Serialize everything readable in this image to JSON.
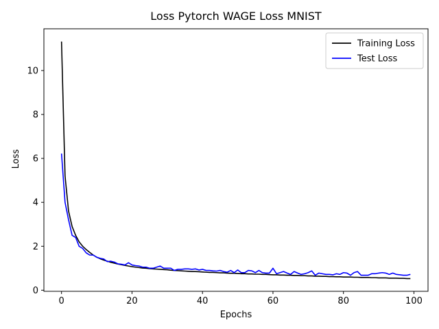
{
  "chart_data": {
    "type": "line",
    "title": "Loss Pytorch WAGE Loss MNIST",
    "xlabel": "Epochs",
    "ylabel": "Loss",
    "xlim": [
      -5,
      104
    ],
    "ylim": [
      -0.05,
      11.9
    ],
    "xticks": [
      0,
      20,
      40,
      60,
      80,
      100
    ],
    "yticks": [
      0,
      2,
      4,
      6,
      8,
      10
    ],
    "grid": false,
    "legend_position": "top-right",
    "x": [
      0,
      1,
      2,
      3,
      4,
      5,
      6,
      7,
      8,
      9,
      10,
      11,
      12,
      13,
      14,
      15,
      16,
      17,
      18,
      19,
      20,
      21,
      22,
      23,
      24,
      25,
      26,
      27,
      28,
      29,
      30,
      31,
      32,
      33,
      34,
      35,
      36,
      37,
      38,
      39,
      40,
      41,
      42,
      43,
      44,
      45,
      46,
      47,
      48,
      49,
      50,
      51,
      52,
      53,
      54,
      55,
      56,
      57,
      58,
      59,
      60,
      61,
      62,
      63,
      64,
      65,
      66,
      67,
      68,
      69,
      70,
      71,
      72,
      73,
      74,
      75,
      76,
      77,
      78,
      79,
      80,
      81,
      82,
      83,
      84,
      85,
      86,
      87,
      88,
      89,
      90,
      91,
      92,
      93,
      94,
      95,
      96,
      97,
      98,
      99
    ],
    "series": [
      {
        "name": "Training Loss",
        "color": "#000000",
        "values": [
          11.32,
          5.2,
          3.6,
          2.9,
          2.5,
          2.2,
          2.0,
          1.85,
          1.72,
          1.6,
          1.5,
          1.43,
          1.37,
          1.32,
          1.27,
          1.23,
          1.19,
          1.16,
          1.13,
          1.1,
          1.07,
          1.05,
          1.03,
          1.01,
          1.0,
          0.98,
          0.97,
          0.96,
          0.95,
          0.94,
          0.93,
          0.91,
          0.9,
          0.89,
          0.88,
          0.87,
          0.86,
          0.85,
          0.85,
          0.84,
          0.83,
          0.82,
          0.81,
          0.81,
          0.8,
          0.79,
          0.79,
          0.78,
          0.77,
          0.77,
          0.76,
          0.75,
          0.75,
          0.74,
          0.74,
          0.73,
          0.73,
          0.72,
          0.72,
          0.71,
          0.7,
          0.7,
          0.69,
          0.69,
          0.68,
          0.68,
          0.67,
          0.67,
          0.66,
          0.66,
          0.65,
          0.65,
          0.64,
          0.64,
          0.63,
          0.63,
          0.62,
          0.62,
          0.61,
          0.61,
          0.6,
          0.6,
          0.6,
          0.59,
          0.59,
          0.58,
          0.58,
          0.58,
          0.57,
          0.57,
          0.56,
          0.56,
          0.56,
          0.55,
          0.55,
          0.55,
          0.54,
          0.54,
          0.53,
          0.53
        ]
      },
      {
        "name": "Test Loss",
        "color": "#0000ff",
        "values": [
          6.22,
          4.0,
          3.2,
          2.5,
          2.4,
          2.0,
          1.9,
          1.7,
          1.6,
          1.6,
          1.5,
          1.45,
          1.42,
          1.3,
          1.32,
          1.28,
          1.2,
          1.18,
          1.15,
          1.25,
          1.15,
          1.12,
          1.1,
          1.05,
          1.05,
          1.0,
          1.0,
          1.05,
          1.1,
          1.0,
          1.0,
          1.0,
          0.9,
          0.95,
          0.95,
          0.97,
          0.97,
          0.95,
          0.97,
          0.92,
          0.95,
          0.9,
          0.9,
          0.88,
          0.87,
          0.9,
          0.85,
          0.82,
          0.9,
          0.8,
          0.92,
          0.8,
          0.8,
          0.9,
          0.88,
          0.8,
          0.9,
          0.8,
          0.78,
          0.78,
          1.0,
          0.75,
          0.8,
          0.85,
          0.78,
          0.72,
          0.85,
          0.78,
          0.72,
          0.75,
          0.8,
          0.88,
          0.68,
          0.78,
          0.75,
          0.72,
          0.72,
          0.7,
          0.75,
          0.72,
          0.8,
          0.78,
          0.68,
          0.8,
          0.85,
          0.68,
          0.68,
          0.68,
          0.75,
          0.75,
          0.78,
          0.8,
          0.78,
          0.72,
          0.78,
          0.72,
          0.7,
          0.68,
          0.68,
          0.72
        ]
      }
    ]
  }
}
